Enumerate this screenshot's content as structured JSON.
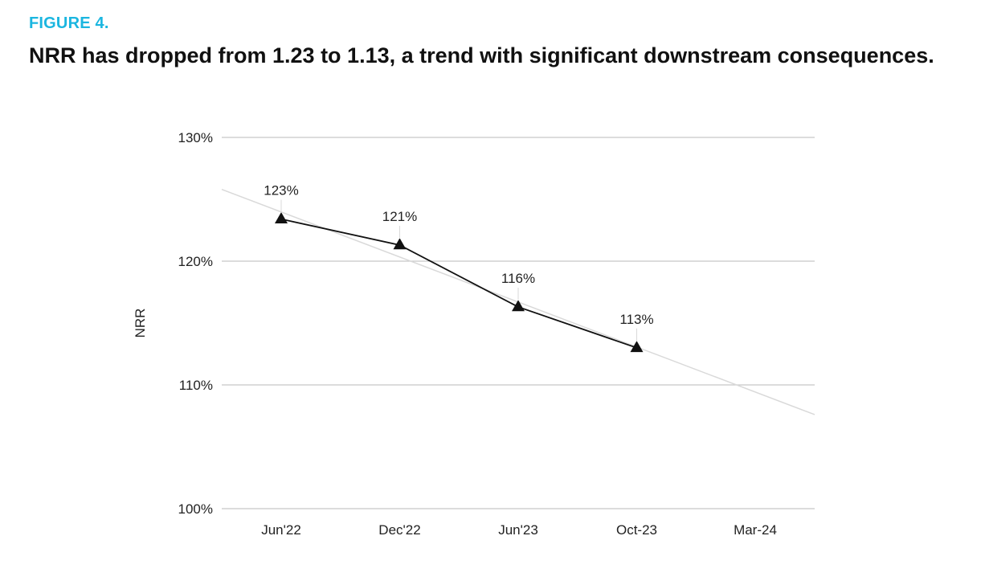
{
  "figure": {
    "label": "FIGURE 4.",
    "title": "NRR has dropped from 1.23 to 1.13, a trend with significant downstream consequences."
  },
  "colors": {
    "label_accent": "#1bb6e0",
    "series_line": "#111111",
    "trend_line": "#d9d9d9",
    "grid": "#c8c8c8"
  },
  "chart_data": {
    "type": "line",
    "categories": [
      "Jun'22",
      "Dec'22",
      "Jun'23",
      "Oct-23",
      "Mar-24"
    ],
    "series": [
      {
        "values": [
          123.4,
          121.3,
          116.3,
          113.0,
          null
        ],
        "labels": [
          "123%",
          "121%",
          "116%",
          "113%",
          ""
        ],
        "marker": "triangle"
      }
    ],
    "trendline": {
      "start": 125.8,
      "end": 107.6
    },
    "ylabel": "NRR",
    "xlabel": "",
    "ylim": [
      100,
      130
    ],
    "yticks": [
      100,
      110,
      120,
      130
    ],
    "ytick_labels": [
      "100%",
      "110%",
      "120%",
      "130%"
    ],
    "grid": true,
    "legend": "none"
  }
}
